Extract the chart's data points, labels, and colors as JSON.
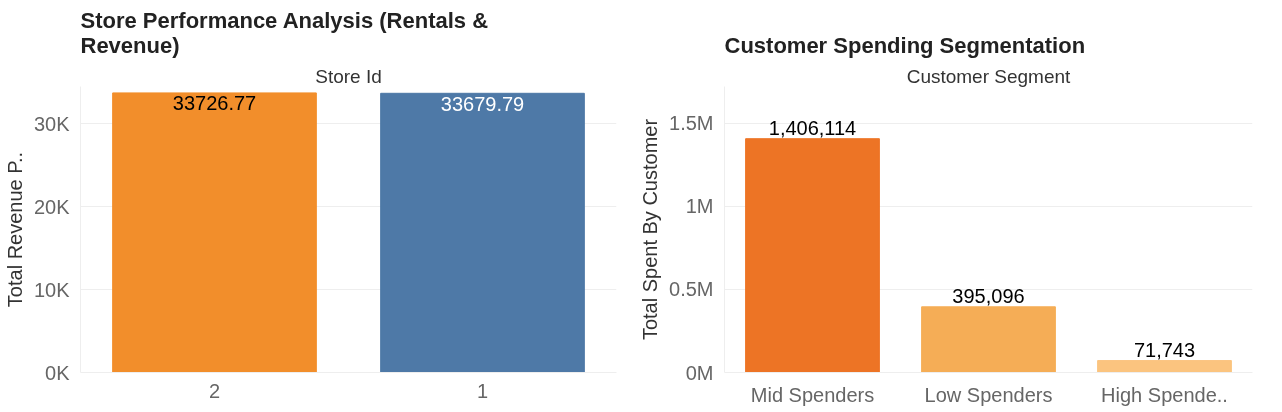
{
  "chart_data": [
    {
      "type": "bar",
      "title": "Store Performance Analysis (Rentals & Revenue)",
      "xlabel": "Store Id",
      "ylabel": "Total Revenue P..",
      "categories": [
        "2",
        "1"
      ],
      "values": [
        33726.77,
        33679.79
      ],
      "colors": [
        "#f28e2b",
        "#4e79a7"
      ],
      "ylim": [
        0,
        34500
      ],
      "yticks": [
        {
          "value": 0,
          "label": "0K"
        },
        {
          "value": 10000,
          "label": "10K"
        },
        {
          "value": 20000,
          "label": "20K"
        },
        {
          "value": 30000,
          "label": "30K"
        }
      ],
      "grid": "y",
      "data_labels": true,
      "value_labels": [
        "33726.77",
        "33679.79"
      ]
    },
    {
      "type": "bar",
      "title": "Customer Spending Segmentation",
      "xlabel": "Customer Segment",
      "ylabel": "Total Spent By Customer",
      "categories": [
        "Mid Spenders",
        "Low Spenders",
        "High Spende.."
      ],
      "values": [
        1406114,
        395096,
        71743
      ],
      "colors": [
        "#ed7425",
        "#f5ad56",
        "#fbc47f"
      ],
      "ylim": [
        0,
        1720000
      ],
      "yticks": [
        {
          "value": 0,
          "label": "0M"
        },
        {
          "value": 500000,
          "label": "0.5M"
        },
        {
          "value": 1000000,
          "label": "1M"
        },
        {
          "value": 1500000,
          "label": "1.5M"
        }
      ],
      "grid": "y",
      "data_labels": true,
      "value_labels": [
        "1,406,114",
        "395,096",
        "71,743"
      ]
    }
  ]
}
